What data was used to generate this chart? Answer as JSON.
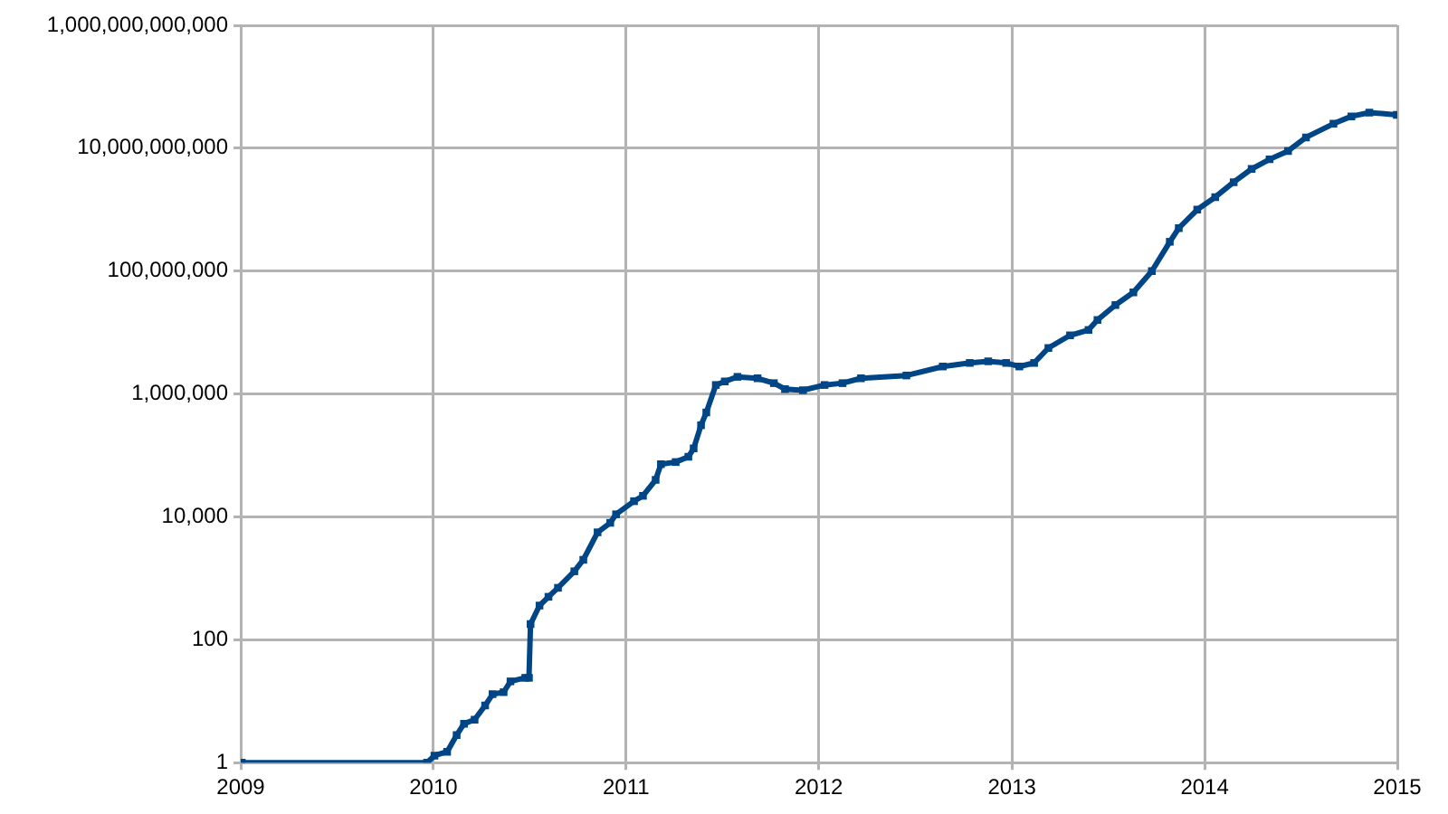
{
  "chart_data": {
    "type": "line",
    "log": "y",
    "grid": true,
    "legend": false,
    "marker": "square",
    "line_style": "solid",
    "xlim": [
      "2009",
      "2015"
    ],
    "xticks": [
      "2009",
      "2010",
      "2011",
      "2012",
      "2013",
      "2014",
      "2015"
    ],
    "ylim": [
      1,
      1000000000000
    ],
    "yticks": [
      {
        "value": 1,
        "label": "1"
      },
      {
        "value": 100,
        "label": "100"
      },
      {
        "value": 10000,
        "label": "10,000"
      },
      {
        "value": 1000000,
        "label": "1,000,000"
      },
      {
        "value": 100000000,
        "label": "100,000,000"
      },
      {
        "value": 10000000000,
        "label": "10,000,000,000"
      },
      {
        "value": 1000000000000,
        "label": "1,000,000,000,000"
      }
    ],
    "x": [
      "2009-01-03",
      "2009-12-20",
      "2010-01-03",
      "2010-01-27",
      "2010-02-14",
      "2010-02-28",
      "2010-03-20",
      "2010-04-09",
      "2010-04-23",
      "2010-05-14",
      "2010-05-27",
      "2010-06-24",
      "2010-07-01",
      "2010-07-04",
      "2010-07-21",
      "2010-08-07",
      "2010-08-25",
      "2010-09-25",
      "2010-10-12",
      "2010-11-08",
      "2010-12-02",
      "2010-12-13",
      "2011-01-16",
      "2011-02-02",
      "2011-02-26",
      "2011-03-08",
      "2011-04-05",
      "2011-04-29",
      "2011-05-09",
      "2011-05-23",
      "2011-06-02",
      "2011-06-20",
      "2011-07-07",
      "2011-07-31",
      "2011-09-07",
      "2011-10-08",
      "2011-10-29",
      "2011-12-02",
      "2012-01-12",
      "2012-02-15",
      "2012-03-21",
      "2012-06-15",
      "2012-08-23",
      "2012-10-13",
      "2012-11-17",
      "2012-12-21",
      "2013-01-15",
      "2013-02-12",
      "2013-03-11",
      "2013-04-21",
      "2013-05-26",
      "2013-06-12",
      "2013-07-16",
      "2013-08-19",
      "2013-09-23",
      "2013-10-27",
      "2013-11-13",
      "2013-12-18",
      "2014-01-21",
      "2014-02-25",
      "2014-03-31",
      "2014-05-04",
      "2014-06-08",
      "2014-07-12",
      "2014-09-02",
      "2014-10-06",
      "2014-11-09",
      "2014-12-31"
    ],
    "series": [
      {
        "color": "#004586",
        "values": [
          1,
          1,
          1.3,
          1.5,
          2.8,
          4.3,
          5,
          8.5,
          13,
          14,
          21,
          24,
          24,
          180,
          360,
          500,
          700,
          1300,
          2000,
          5600,
          8000,
          11000,
          18000,
          22000,
          40000,
          72000,
          78000,
          95000,
          130000,
          310000,
          500000,
          1400000,
          1600000,
          1900000,
          1800000,
          1500000,
          1200000,
          1150000,
          1400000,
          1500000,
          1800000,
          2000000,
          2800000,
          3200000,
          3400000,
          3200000,
          2800000,
          3200000,
          5600000,
          9000000,
          11000000,
          16000000,
          28000000,
          45000000,
          100000000,
          300000000,
          500000000,
          1000000000,
          1600000000,
          2800000000,
          4600000000,
          6600000000,
          9000000000,
          15000000000,
          25000000000,
          33000000000,
          38000000000,
          35000000000
        ]
      }
    ]
  }
}
